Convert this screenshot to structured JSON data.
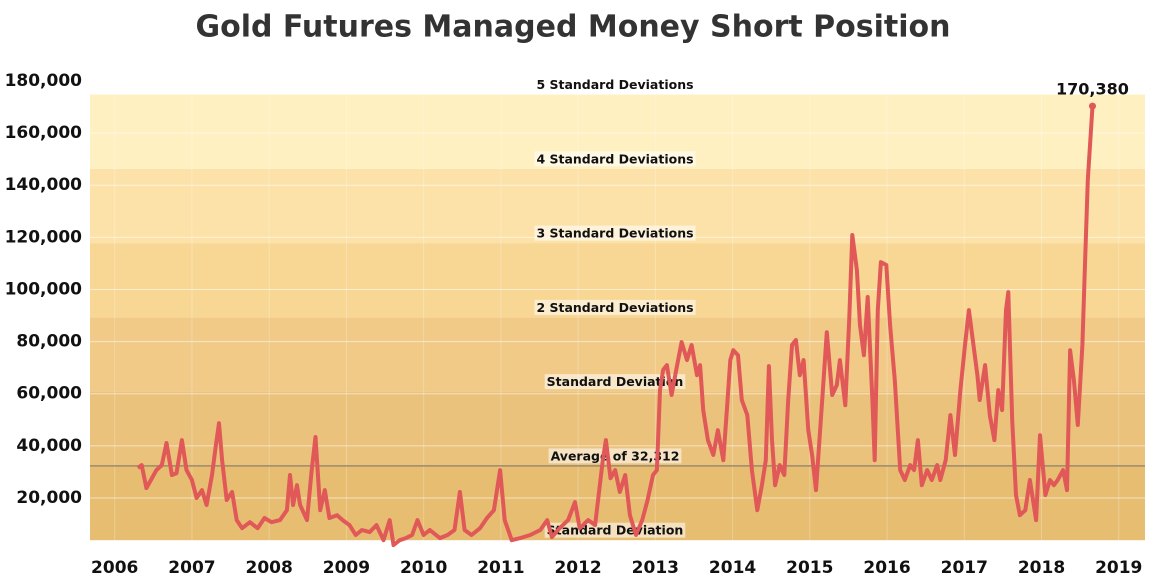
{
  "chart_data": {
    "type": "line",
    "title": "Gold Futures Managed Money Short Position",
    "xlim": [
      2005.68,
      2019.34
    ],
    "xticks": [
      2006,
      2007,
      2008,
      2009,
      2010,
      2011,
      2012,
      2013,
      2014,
      2015,
      2016,
      2017,
      2018,
      2019
    ],
    "ylim": [
      800,
      182300
    ],
    "yticks": [
      {
        "value": 20000,
        "label": "20,000"
      },
      {
        "value": 40000,
        "label": "40,000"
      },
      {
        "value": 60000,
        "label": "60,000"
      },
      {
        "value": 80000,
        "label": "80,000"
      },
      {
        "value": 100000,
        "label": "100,000"
      },
      {
        "value": 120000,
        "label": "120,000"
      },
      {
        "value": 140000,
        "label": "140,000"
      },
      {
        "value": 160000,
        "label": "160,000"
      },
      {
        "value": 180000,
        "label": "180,000"
      }
    ],
    "grid": true,
    "reference_lines": [
      {
        "label": "Standard Deviation",
        "value": 3800
      },
      {
        "label": "Average of 32,312",
        "value": 32312
      },
      {
        "label": "Standard Deviation",
        "value": 60800
      },
      {
        "label": "2 Standard Deviations",
        "value": 89300
      },
      {
        "label": "3 Standard Deviations",
        "value": 117800
      },
      {
        "label": "4 Standard Deviations",
        "value": 146300
      },
      {
        "label": "5 Standard Deviations",
        "value": 174800
      }
    ],
    "band_colors": [
      "#e7bd71",
      "#eac27b",
      "#f0ca86",
      "#f8d794",
      "#fce2a8",
      "#fff0c2"
    ],
    "average_line_color": "#9b8a6c",
    "series": [
      {
        "color": "#e05858",
        "x": [
          2006.3,
          2006.35,
          2006.41,
          2006.54,
          2006.61,
          2006.67,
          2006.74,
          2006.8,
          2006.87,
          2006.93,
          2007.0,
          2007.06,
          2007.13,
          2007.19,
          2007.26,
          2007.31,
          2007.35,
          2007.39,
          2007.45,
          2007.52,
          2007.58,
          2007.65,
          2007.75,
          2007.85,
          2007.94,
          2008.03,
          2008.14,
          2008.23,
          2008.27,
          2008.31,
          2008.36,
          2008.4,
          2008.49,
          2008.55,
          2008.6,
          2008.66,
          2008.72,
          2008.78,
          2008.88,
          2008.95,
          2009.04,
          2009.12,
          2009.2,
          2009.3,
          2009.39,
          2009.48,
          2009.56,
          2009.61,
          2009.69,
          2009.77,
          2009.85,
          2009.92,
          2010.0,
          2010.08,
          2010.21,
          2010.31,
          2010.4,
          2010.47,
          2010.53,
          2010.62,
          2010.73,
          2010.82,
          2010.91,
          2010.99,
          2011.05,
          2011.14,
          2011.25,
          2011.38,
          2011.51,
          2011.6,
          2011.66,
          2011.76,
          2011.87,
          2011.96,
          2012.02,
          2012.13,
          2012.22,
          2012.32,
          2012.36,
          2012.42,
          2012.48,
          2012.54,
          2012.61,
          2012.67,
          2012.75,
          2012.83,
          2012.9,
          2012.97,
          2013.02,
          2013.06,
          2013.1,
          2013.15,
          2013.21,
          2013.27,
          2013.34,
          2013.41,
          2013.47,
          2013.54,
          2013.58,
          2013.62,
          2013.68,
          2013.75,
          2013.81,
          2013.88,
          2013.93,
          2013.97,
          2014.01,
          2014.07,
          2014.12,
          2014.19,
          2014.25,
          2014.32,
          2014.38,
          2014.43,
          2014.47,
          2014.51,
          2014.55,
          2014.61,
          2014.67,
          2014.72,
          2014.77,
          2014.82,
          2014.87,
          2014.92,
          2014.98,
          2015.03,
          2015.08,
          2015.16,
          2015.22,
          2015.29,
          2015.35,
          2015.39,
          2015.46,
          2015.51,
          2015.55,
          2015.61,
          2015.65,
          2015.7,
          2015.75,
          2015.81,
          2015.84,
          2015.88,
          2015.92,
          2015.99,
          2016.04,
          2016.1,
          2016.17,
          2016.23,
          2016.3,
          2016.35,
          2016.4,
          2016.45,
          2016.52,
          2016.58,
          2016.65,
          2016.69,
          2016.76,
          2016.82,
          2016.88,
          2016.95,
          2017.01,
          2017.06,
          2017.11,
          2017.17,
          2017.2,
          2017.27,
          2017.33,
          2017.39,
          2017.44,
          2017.49,
          2017.54,
          2017.57,
          2017.62,
          2017.67,
          2017.72,
          2017.79,
          2017.85,
          2017.93,
          2017.98,
          2018.05,
          2018.11,
          2018.16,
          2018.21,
          2018.28,
          2018.33,
          2018.37,
          2018.42,
          2018.47,
          2018.53,
          2018.56,
          2018.6,
          2018.66
        ],
        "values": [
          31500,
          32600,
          23800,
          30700,
          32600,
          41100,
          28800,
          29500,
          42200,
          30700,
          26900,
          20000,
          23000,
          17300,
          28800,
          40300,
          48700,
          34500,
          19200,
          22300,
          11500,
          8400,
          10700,
          8400,
          12300,
          10700,
          11500,
          15300,
          28800,
          17300,
          24900,
          17300,
          11500,
          30700,
          43400,
          15300,
          23000,
          12300,
          13400,
          11500,
          9600,
          5800,
          7700,
          6900,
          9600,
          3800,
          11500,
          1900,
          3800,
          4600,
          5800,
          11500,
          5800,
          7700,
          4600,
          5800,
          7700,
          22300,
          7700,
          5800,
          8400,
          12300,
          15300,
          30700,
          11500,
          3800,
          4600,
          5800,
          7700,
          11500,
          5000,
          8400,
          11500,
          18400,
          8400,
          11500,
          9600,
          34500,
          42200,
          27600,
          30700,
          22300,
          28800,
          13400,
          5800,
          11500,
          19200,
          28800,
          30700,
          61400,
          69100,
          71000,
          59500,
          69100,
          79800,
          72900,
          78700,
          67100,
          71000,
          53700,
          42200,
          36500,
          46000,
          34500,
          55600,
          72900,
          76700,
          74800,
          57600,
          51800,
          30700,
          15300,
          24900,
          34500,
          70600,
          42200,
          24900,
          32600,
          28800,
          57600,
          78700,
          80600,
          67100,
          72900,
          46000,
          36500,
          23000,
          57600,
          83600,
          59500,
          63300,
          72900,
          55600,
          88300,
          120900,
          107400,
          86300,
          74800,
          97100,
          57600,
          34500,
          92100,
          110500,
          109400,
          86300,
          65200,
          30700,
          26900,
          32600,
          30700,
          42200,
          24900,
          30700,
          26900,
          32600,
          26900,
          34500,
          51800,
          36500,
          61400,
          78700,
          92100,
          80600,
          67100,
          57600,
          71000,
          51800,
          42200,
          61400,
          53700,
          92100,
          99000,
          49900,
          21100,
          13400,
          15300,
          26900,
          11500,
          44100,
          21100,
          26900,
          24900,
          26900,
          30700,
          23000,
          76700,
          65200,
          48000,
          78700,
          107400,
          142000,
          170380
        ],
        "value_labels": [
          null,
          null,
          null,
          null,
          null,
          null,
          null,
          null,
          null,
          null,
          null,
          null,
          null,
          null,
          null,
          null,
          null,
          null,
          null,
          null,
          null,
          null,
          null,
          null,
          null,
          null,
          null,
          null,
          null,
          null,
          null,
          null,
          null,
          null,
          null,
          null,
          null,
          null,
          null,
          null,
          null,
          null,
          null,
          null,
          null,
          null,
          null,
          null,
          null,
          null,
          null,
          null,
          null,
          null,
          null,
          null,
          null,
          null,
          null,
          null,
          null,
          null,
          null,
          null,
          null,
          null,
          null,
          null,
          null,
          null,
          null,
          null,
          null,
          null,
          null,
          null,
          null,
          null,
          null,
          null,
          null,
          null,
          null,
          null,
          null,
          null,
          null,
          null,
          null,
          null,
          null,
          null,
          null,
          null,
          null,
          null,
          null,
          null,
          null,
          null,
          null,
          null,
          null,
          null,
          null,
          null,
          null,
          null,
          null,
          null,
          null,
          null,
          null,
          null,
          null,
          null,
          null,
          null,
          null,
          null,
          null,
          null,
          null,
          null,
          null,
          null,
          null,
          null,
          null,
          null,
          null,
          null,
          null,
          null,
          null,
          null,
          null,
          null,
          null,
          null,
          null,
          null,
          null,
          null,
          null,
          null,
          null,
          null,
          null,
          null,
          null,
          null,
          null,
          null,
          null,
          null,
          null,
          null,
          null,
          null,
          null,
          null,
          null,
          null,
          null,
          null,
          null,
          null,
          null,
          null,
          null,
          null,
          null,
          null,
          null,
          null,
          null,
          null,
          null,
          null,
          null,
          null,
          null,
          null,
          null,
          null,
          null,
          null,
          null,
          null,
          null,
          "170,380"
        ]
      }
    ]
  }
}
